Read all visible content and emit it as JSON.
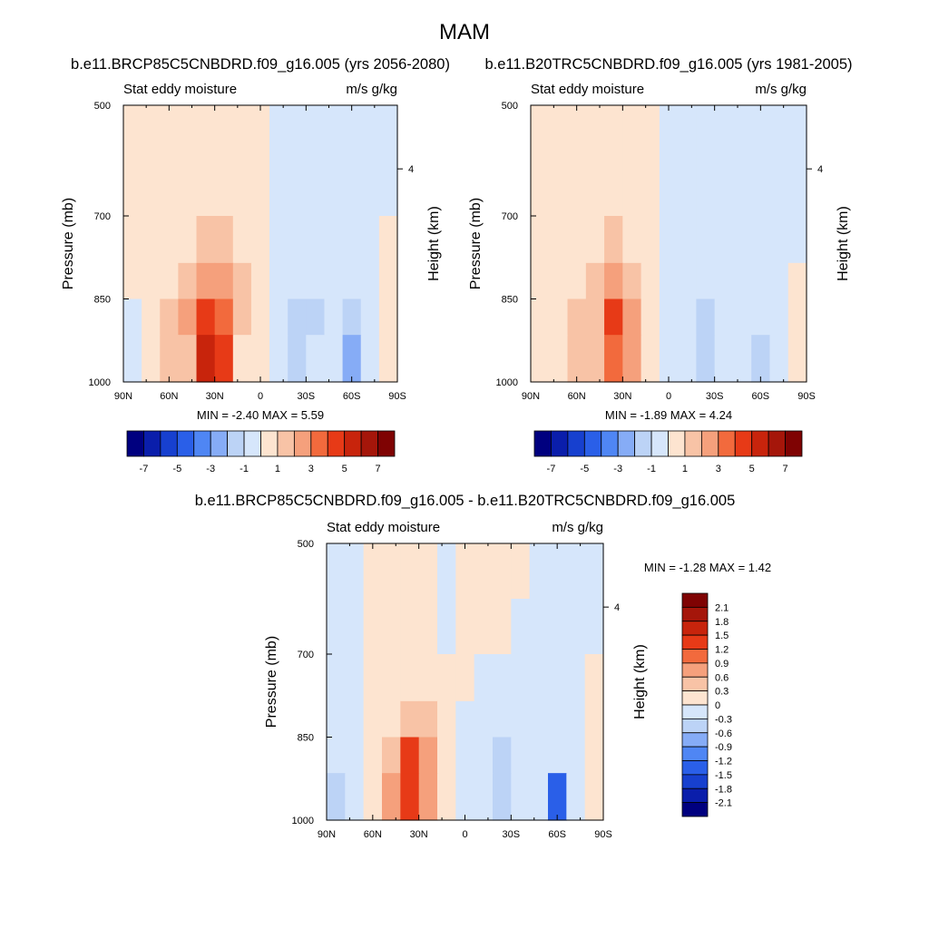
{
  "title": "MAM",
  "colors": {
    "palette": [
      "#00007f",
      "#0a1eab",
      "#1740cf",
      "#2a5fe8",
      "#4f86f4",
      "#86acf6",
      "#bcd3f6",
      "#d6e6fb",
      "#fde4d0",
      "#f8c3a6",
      "#f5a07c",
      "#f26a3d",
      "#e73a17",
      "#c8240c",
      "#a5160a",
      "#7f0303"
    ],
    "background": "#ffffff"
  },
  "chart_data": [
    {
      "type": "heatmap",
      "panel": "left",
      "title": "b.e11.BRCP85C5CNBDRD.f09_g16.005 (yrs 2056-2080)",
      "left_string": "Stat eddy moisture",
      "right_string": "m/s g/kg",
      "ylabel": "Pressure (mb)",
      "ylabel_right": "Height (km)",
      "yticks": [
        "500",
        "700",
        "850",
        "1000"
      ],
      "ytick_values": [
        500,
        700,
        850,
        1000
      ],
      "right_tick": "4",
      "xticks": [
        "90N",
        "60N",
        "30N",
        "0",
        "30S",
        "60S",
        "90S"
      ],
      "xtick_values": [
        90,
        60,
        30,
        0,
        -30,
        -60,
        -90
      ],
      "xlim": [
        90,
        -90
      ],
      "ylim": [
        500,
        1000
      ],
      "min_max": "MIN =  -2.40  MAX =   5.59",
      "min": -2.4,
      "max": 5.59,
      "colorbar_labels": [
        "-7",
        "-5",
        "-3",
        "-1",
        "1",
        "3",
        "5",
        "7"
      ],
      "colorbar_levels": [
        -7,
        -6,
        -5,
        -4,
        -3,
        -2,
        -1,
        0,
        1,
        2,
        3,
        4,
        5,
        6,
        7
      ],
      "values": [
        [
          0.2,
          0.3,
          0.4,
          0.5,
          0.5,
          0.4,
          0.3,
          0.2,
          -0.3,
          -0.5,
          -0.4,
          -0.6,
          -0.5,
          -0.4,
          -0.3
        ],
        [
          0.3,
          0.4,
          0.5,
          0.6,
          0.6,
          0.5,
          0.4,
          0.3,
          -0.4,
          -0.6,
          -0.5,
          -0.7,
          -0.6,
          -0.5,
          -0.4
        ],
        [
          0.3,
          0.5,
          0.6,
          0.8,
          1.2,
          1.0,
          0.6,
          0.3,
          -0.5,
          -0.7,
          -0.6,
          -0.8,
          -0.6,
          -0.5,
          0.3
        ],
        [
          0.4,
          0.5,
          0.8,
          1.2,
          2.4,
          2.0,
          1.0,
          0.2,
          -0.6,
          -0.9,
          -0.8,
          -0.9,
          -0.7,
          -0.6,
          0.4
        ],
        [
          -0.3,
          0.6,
          1.5,
          2.0,
          4.5,
          3.8,
          1.2,
          0.1,
          -0.8,
          -1.6,
          -1.3,
          -1.0,
          -1.2,
          -0.8,
          0.5
        ],
        [
          -0.6,
          0.4,
          1.0,
          1.8,
          5.59,
          4.2,
          0.8,
          0.2,
          -0.5,
          -1.8,
          -1.0,
          -0.6,
          -2.4,
          -0.5,
          0.3
        ]
      ],
      "pressure_levels": [
        550,
        650,
        750,
        820,
        880,
        950
      ],
      "latitudes": [
        84,
        72,
        60,
        48,
        36,
        24,
        12,
        0,
        -12,
        -24,
        -36,
        -48,
        -60,
        -72,
        -84
      ]
    },
    {
      "type": "heatmap",
      "panel": "right",
      "title": "b.e11.B20TRC5CNBDRD.f09_g16.005 (yrs 1981-2005)",
      "left_string": "Stat eddy moisture",
      "right_string": "m/s g/kg",
      "ylabel": "Pressure (mb)",
      "ylabel_right": "Height (km)",
      "yticks": [
        "500",
        "700",
        "850",
        "1000"
      ],
      "ytick_values": [
        500,
        700,
        850,
        1000
      ],
      "right_tick": "4",
      "xticks": [
        "90N",
        "60N",
        "30N",
        "0",
        "30S",
        "60S",
        "90S"
      ],
      "xtick_values": [
        90,
        60,
        30,
        0,
        -30,
        -60,
        -90
      ],
      "xlim": [
        90,
        -90
      ],
      "ylim": [
        500,
        1000
      ],
      "min_max": "MIN =  -1.89  MAX =   4.24",
      "min": -1.89,
      "max": 4.24,
      "colorbar_labels": [
        "-7",
        "-5",
        "-3",
        "-1",
        "1",
        "3",
        "5",
        "7"
      ],
      "colorbar_levels": [
        -7,
        -6,
        -5,
        -4,
        -3,
        -2,
        -1,
        0,
        1,
        2,
        3,
        4,
        5,
        6,
        7
      ],
      "values": [
        [
          0.2,
          0.3,
          0.4,
          0.5,
          0.4,
          0.3,
          0.3,
          -0.2,
          -0.3,
          -0.4,
          -0.4,
          -0.5,
          -0.4,
          -0.3,
          -0.3
        ],
        [
          0.3,
          0.4,
          0.5,
          0.5,
          0.5,
          0.4,
          0.3,
          -0.3,
          -0.4,
          -0.5,
          -0.5,
          -0.6,
          -0.5,
          -0.4,
          -0.4
        ],
        [
          0.3,
          0.4,
          0.5,
          0.7,
          1.0,
          0.8,
          0.4,
          -0.3,
          -0.5,
          -0.6,
          -0.6,
          -0.7,
          -0.5,
          -0.4,
          -0.3
        ],
        [
          0.4,
          0.5,
          0.7,
          1.0,
          2.2,
          1.6,
          0.6,
          -0.2,
          -0.6,
          -0.8,
          -0.7,
          -0.8,
          -0.6,
          -0.5,
          0.3
        ],
        [
          0.3,
          0.6,
          1.4,
          1.5,
          4.24,
          2.8,
          0.8,
          -0.2,
          -0.7,
          -1.4,
          -0.9,
          -0.8,
          -0.9,
          -0.7,
          0.4
        ],
        [
          0.4,
          0.5,
          1.0,
          1.2,
          3.8,
          2.5,
          0.5,
          -0.3,
          -0.5,
          -1.2,
          -0.7,
          -0.5,
          -1.89,
          -0.5,
          0.3
        ]
      ],
      "pressure_levels": [
        550,
        650,
        750,
        820,
        880,
        950
      ],
      "latitudes": [
        84,
        72,
        60,
        48,
        36,
        24,
        12,
        0,
        -12,
        -24,
        -36,
        -48,
        -60,
        -72,
        -84
      ]
    },
    {
      "type": "heatmap",
      "panel": "difference",
      "title": "b.e11.BRCP85C5CNBDRD.f09_g16.005 - b.e11.B20TRC5CNBDRD.f09_g16.005",
      "left_string": "Stat eddy moisture",
      "right_string": "m/s g/kg",
      "ylabel": "Pressure (mb)",
      "ylabel_right": "Height (km)",
      "yticks": [
        "500",
        "700",
        "850",
        "1000"
      ],
      "ytick_values": [
        500,
        700,
        850,
        1000
      ],
      "right_tick": "4",
      "xticks": [
        "90N",
        "60N",
        "30N",
        "0",
        "30S",
        "60S",
        "90S"
      ],
      "xtick_values": [
        90,
        60,
        30,
        0,
        -30,
        -60,
        -90
      ],
      "xlim": [
        90,
        -90
      ],
      "ylim": [
        500,
        1000
      ],
      "min_max": "MIN =  -1.28  MAX =   1.42",
      "min": -1.28,
      "max": 1.42,
      "colorbar_labels": [
        "2.1",
        "1.8",
        "1.5",
        "1.2",
        "0.9",
        "0.6",
        "0.3",
        "0",
        "-0.3",
        "-0.6",
        "-0.9",
        "-1.2",
        "-1.5",
        "-1.8",
        "-2.1"
      ],
      "colorbar_levels": [
        -2.1,
        -1.8,
        -1.5,
        -1.2,
        -0.9,
        -0.6,
        -0.3,
        0,
        0.3,
        0.6,
        0.9,
        1.2,
        1.5,
        1.8,
        2.1
      ],
      "values": [
        [
          -0.1,
          -0.1,
          0.1,
          0.1,
          0.1,
          0.1,
          -0.1,
          0.1,
          0.1,
          0.1,
          0.1,
          -0.1,
          -0.1,
          -0.1,
          -0.1
        ],
        [
          -0.1,
          -0.1,
          0.1,
          0.1,
          0.1,
          0.1,
          -0.1,
          0.1,
          0.1,
          0.1,
          -0.1,
          -0.1,
          -0.1,
          -0.1,
          -0.1
        ],
        [
          -0.1,
          -0.1,
          0.1,
          0.1,
          0.2,
          0.2,
          0.1,
          0.1,
          -0.1,
          -0.1,
          -0.1,
          -0.1,
          -0.1,
          -0.1,
          0.1
        ],
        [
          -0.1,
          -0.1,
          0.1,
          0.2,
          0.4,
          0.3,
          0.1,
          -0.1,
          -0.1,
          -0.2,
          -0.1,
          -0.1,
          -0.1,
          -0.1,
          0.1
        ],
        [
          -0.2,
          -0.1,
          0.2,
          0.5,
          1.2,
          0.6,
          0.1,
          -0.1,
          -0.2,
          -0.5,
          -0.2,
          -0.1,
          -0.3,
          -0.1,
          0.1
        ],
        [
          -0.6,
          -0.2,
          0.1,
          0.6,
          1.42,
          0.8,
          0.1,
          -0.1,
          -0.1,
          -0.5,
          -0.1,
          -0.1,
          -1.28,
          -0.1,
          0.1
        ]
      ],
      "pressure_levels": [
        550,
        650,
        750,
        820,
        880,
        950
      ],
      "latitudes": [
        84,
        72,
        60,
        48,
        36,
        24,
        12,
        0,
        -12,
        -24,
        -36,
        -48,
        -60,
        -72,
        -84
      ]
    }
  ]
}
